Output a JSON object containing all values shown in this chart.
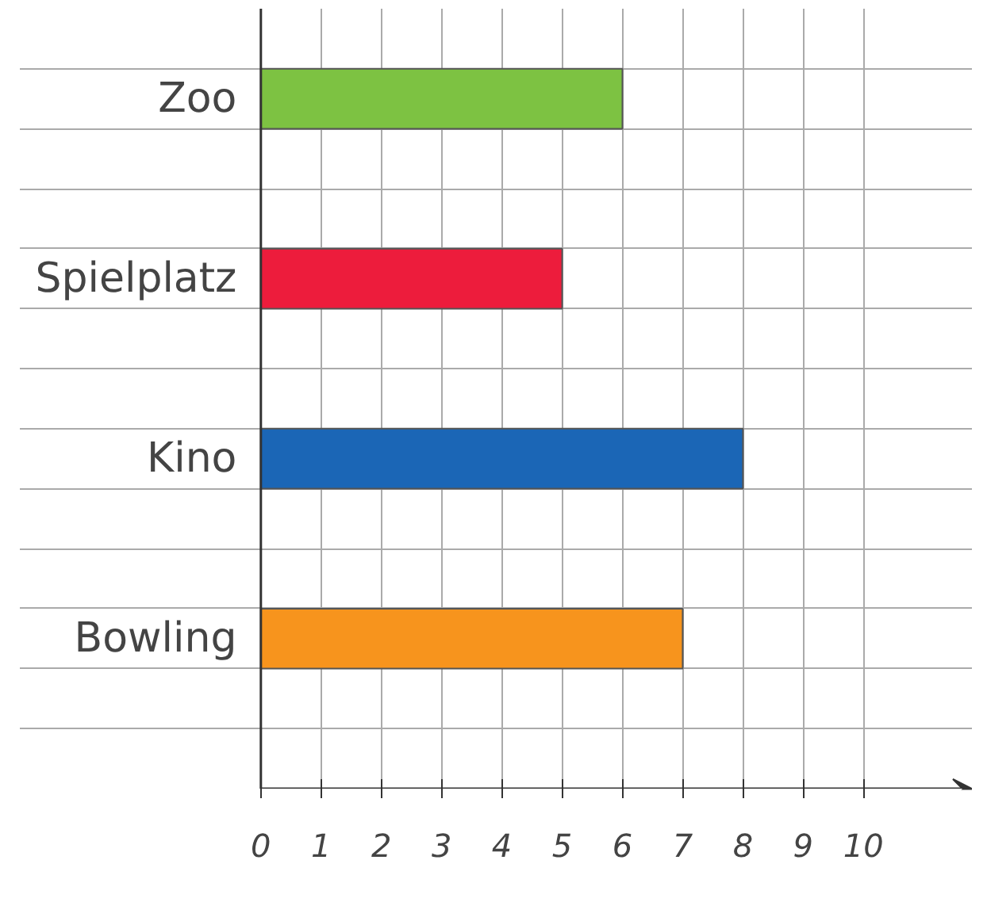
{
  "chart_data": {
    "type": "bar",
    "orientation": "horizontal",
    "categories": [
      "Zoo",
      "Spielplatz",
      "Kino",
      "Bowling"
    ],
    "values": [
      6,
      5,
      8,
      7
    ],
    "colors": [
      "#7dc242",
      "#ed1c3c",
      "#1b66b6",
      "#f7941d"
    ],
    "xlim": [
      -4,
      11.8
    ],
    "xticks": [
      0,
      1,
      2,
      3,
      4,
      5,
      6,
      7,
      8,
      9,
      10
    ],
    "grid": true
  }
}
